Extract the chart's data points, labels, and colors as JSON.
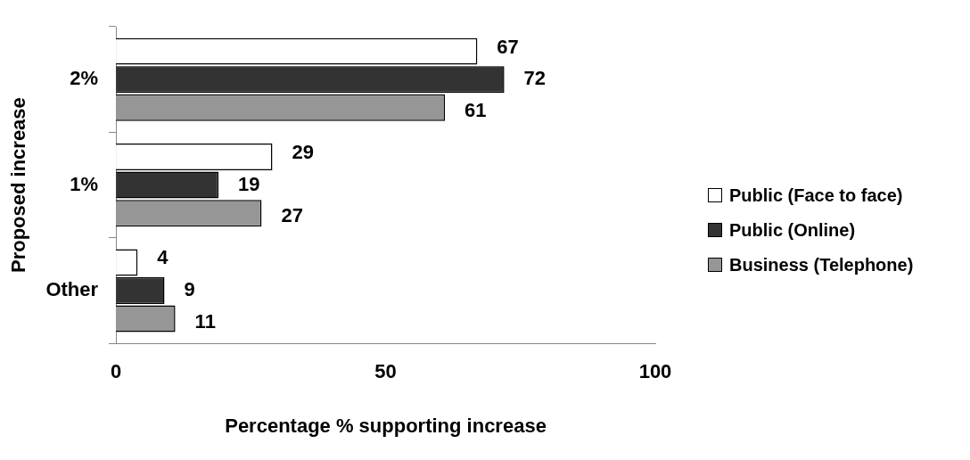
{
  "chart_data": {
    "type": "bar",
    "orientation": "horizontal",
    "xlabel": "Percentage % supporting increase",
    "ylabel": "Proposed increase",
    "categories": [
      "2%",
      "1%",
      "Other"
    ],
    "series": [
      {
        "name": "Public (Face to face)",
        "color": "#ffffff",
        "values": [
          67,
          29,
          4
        ]
      },
      {
        "name": "Public (Online)",
        "color": "#333333",
        "values": [
          72,
          19,
          9
        ]
      },
      {
        "name": "Business (Telephone)",
        "color": "#969696",
        "values": [
          61,
          27,
          11
        ]
      }
    ],
    "xlim": [
      0,
      100
    ],
    "xticks": [
      0,
      50,
      100
    ],
    "grid": false,
    "legend": "right",
    "data_labels": true
  }
}
